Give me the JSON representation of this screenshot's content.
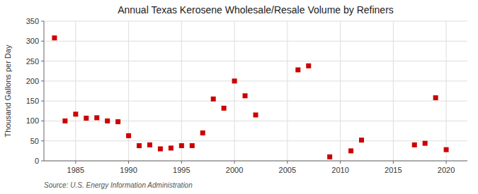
{
  "chart_data": {
    "type": "scatter",
    "title": "Annual Texas Kerosene Wholesale/Resale Volume by Refiners",
    "ylabel": "Thousand Gallons per Day",
    "source": "Source: U.S. Energy Information Administration",
    "x": [
      1983,
      1984,
      1985,
      1986,
      1987,
      1988,
      1989,
      1990,
      1991,
      1992,
      1993,
      1994,
      1995,
      1996,
      1997,
      1998,
      1999,
      2000,
      2001,
      2002,
      2006,
      2007,
      2009,
      2011,
      2012,
      2017,
      2018,
      2019,
      2020
    ],
    "values": [
      308,
      100,
      117,
      107,
      108,
      100,
      98,
      63,
      38,
      40,
      30,
      32,
      38,
      38,
      70,
      155,
      132,
      200,
      163,
      115,
      228,
      238,
      10,
      25,
      52,
      40,
      44,
      158,
      28
    ],
    "color": "#cc0000",
    "marker": "square",
    "xlim": [
      1982,
      2022
    ],
    "ylim": [
      0,
      350
    ],
    "xticks": [
      1985,
      1990,
      1995,
      2000,
      2005,
      2010,
      2015,
      2020
    ],
    "yticks": [
      0,
      50,
      100,
      150,
      200,
      250,
      300,
      350
    ],
    "grid": true
  }
}
